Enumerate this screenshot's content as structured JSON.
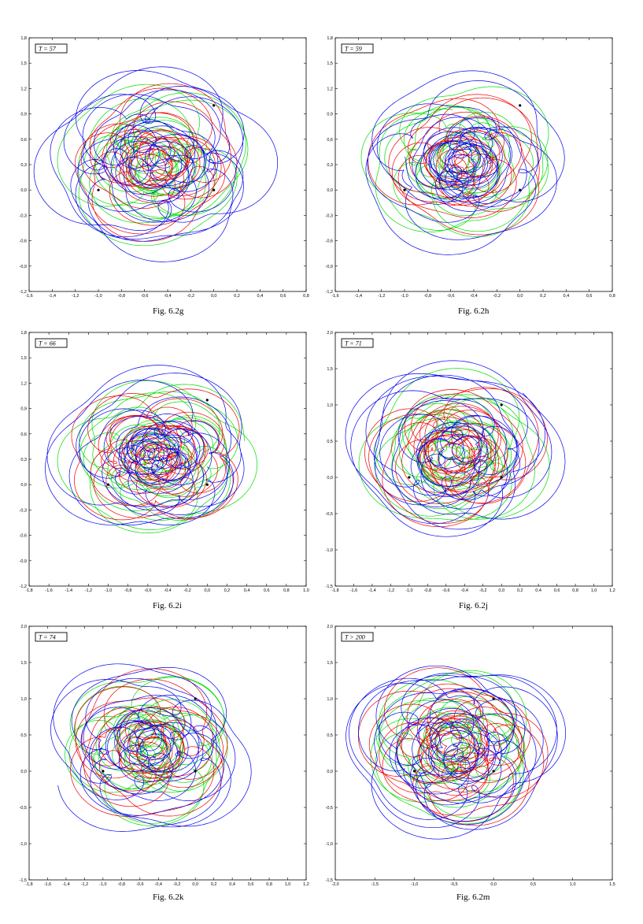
{
  "panels": [
    {
      "caption": "Fig. 6.2g",
      "time_label": "T = 57",
      "chart_data": {
        "type": "line",
        "xlim": [
          -1.6,
          0.8
        ],
        "ylim": [
          -1.2,
          1.8
        ],
        "xticks": [
          "-1,6",
          "-1,4",
          "-1,2",
          "-1,0",
          "-0,8",
          "-0,6",
          "-0,4",
          "-0,2",
          "0,0",
          "0,2",
          "0,4",
          "0,6",
          "0,8"
        ],
        "yticks": [
          "-1,2",
          "-0,9",
          "-0,6",
          "-0,3",
          "0,0",
          "0,3",
          "0,6",
          "0,9",
          "1,2",
          "1,5",
          "1,8"
        ],
        "series_colors": [
          "#00dd00",
          "#ee0000",
          "#0000ee"
        ],
        "bodies": [
          [
            -1.0,
            0.0
          ],
          [
            0.0,
            0.0
          ],
          [
            0.0,
            1.0
          ]
        ],
        "seed": 57
      }
    },
    {
      "caption": "Fig. 6.2h",
      "time_label": "T = 59",
      "chart_data": {
        "type": "line",
        "xlim": [
          -1.6,
          0.8
        ],
        "ylim": [
          -1.2,
          1.8
        ],
        "xticks": [
          "-1,6",
          "-1,4",
          "-1,2",
          "-1,0",
          "-0,8",
          "-0,6",
          "-0,4",
          "-0,2",
          "0,0",
          "0,2",
          "0,4",
          "0,6",
          "0,8"
        ],
        "yticks": [
          "-1,2",
          "-0,9",
          "-0,6",
          "-0,3",
          "0,0",
          "0,3",
          "0,6",
          "0,9",
          "1,2",
          "1,5",
          "1,8"
        ],
        "series_colors": [
          "#00dd00",
          "#ee0000",
          "#0000ee"
        ],
        "bodies": [
          [
            -1.0,
            0.0
          ],
          [
            0.0,
            0.0
          ],
          [
            0.0,
            1.0
          ]
        ],
        "seed": 59
      }
    },
    {
      "caption": "Fig. 6.2i",
      "time_label": "T = 66",
      "chart_data": {
        "type": "line",
        "xlim": [
          -1.8,
          1.0
        ],
        "ylim": [
          -1.2,
          1.8
        ],
        "xticks": [
          "-1,8",
          "-1,6",
          "-1,4",
          "-1,2",
          "-1,0",
          "-0,8",
          "-0,6",
          "-0,4",
          "-0,2",
          "0,0",
          "0,2",
          "0,4",
          "0,6",
          "0,8",
          "1,0"
        ],
        "yticks": [
          "-1,2",
          "-0,9",
          "-0,6",
          "-0,3",
          "0,0",
          "0,3",
          "0,6",
          "0,9",
          "1,2",
          "1,5",
          "1,8"
        ],
        "series_colors": [
          "#00dd00",
          "#ee0000",
          "#0000ee"
        ],
        "bodies": [
          [
            -1.0,
            0.0
          ],
          [
            0.0,
            0.0
          ],
          [
            0.0,
            1.0
          ]
        ],
        "seed": 66
      }
    },
    {
      "caption": "Fig. 6.2j",
      "time_label": "T = 71",
      "chart_data": {
        "type": "line",
        "xlim": [
          -1.8,
          1.2
        ],
        "ylim": [
          -1.5,
          2.0
        ],
        "xticks": [
          "-1,8",
          "-1,6",
          "-1,4",
          "-1,2",
          "-1,0",
          "-0,8",
          "-0,6",
          "-0,4",
          "-0,2",
          "0,0",
          "0,2",
          "0,4",
          "0,6",
          "0,8",
          "1,0",
          "1,2"
        ],
        "yticks": [
          "-1,5",
          "-1,0",
          "-0,5",
          "0,0",
          "0,5",
          "1,0",
          "1,5",
          "2,0"
        ],
        "series_colors": [
          "#00dd00",
          "#ee0000",
          "#0000ee"
        ],
        "bodies": [
          [
            -1.0,
            0.0
          ],
          [
            0.0,
            0.0
          ],
          [
            0.0,
            1.0
          ]
        ],
        "seed": 71
      }
    },
    {
      "caption": "Fig. 6.2k",
      "time_label": "T = 74",
      "chart_data": {
        "type": "line",
        "xlim": [
          -1.8,
          1.2
        ],
        "ylim": [
          -1.5,
          2.0
        ],
        "xticks": [
          "-1,8",
          "-1,6",
          "-1,4",
          "-1,2",
          "-1,0",
          "-0,8",
          "-0,6",
          "-0,4",
          "-0,2",
          "0,0",
          "0,2",
          "0,4",
          "0,6",
          "0,8",
          "1,0",
          "1,2"
        ],
        "yticks": [
          "-1,5",
          "-1,0",
          "-0,5",
          "0,0",
          "0,5",
          "1,0",
          "1,5",
          "2,0"
        ],
        "series_colors": [
          "#00dd00",
          "#ee0000",
          "#0000ee"
        ],
        "bodies": [
          [
            -1.0,
            0.0
          ],
          [
            0.0,
            0.0
          ],
          [
            0.0,
            1.0
          ]
        ],
        "seed": 74
      }
    },
    {
      "caption": "Fig. 6.2m",
      "time_label": "T > 200",
      "chart_data": {
        "type": "line",
        "xlim": [
          -2.0,
          1.5
        ],
        "ylim": [
          -1.5,
          2.0
        ],
        "xticks": [
          "-2,0",
          "-1,5",
          "-1,0",
          "-0,5",
          "0,0",
          "0,5",
          "1,0",
          "1,5"
        ],
        "yticks": [
          "-1,5",
          "-1,0",
          "-0,5",
          "0,0",
          "0,5",
          "1,0",
          "1,5",
          "2,0"
        ],
        "series_colors": [
          "#00dd00",
          "#ee0000",
          "#0000ee"
        ],
        "bodies": [
          [
            -1.0,
            0.0
          ],
          [
            0.0,
            0.0
          ],
          [
            0.0,
            1.0
          ]
        ],
        "seed": 200
      }
    }
  ]
}
